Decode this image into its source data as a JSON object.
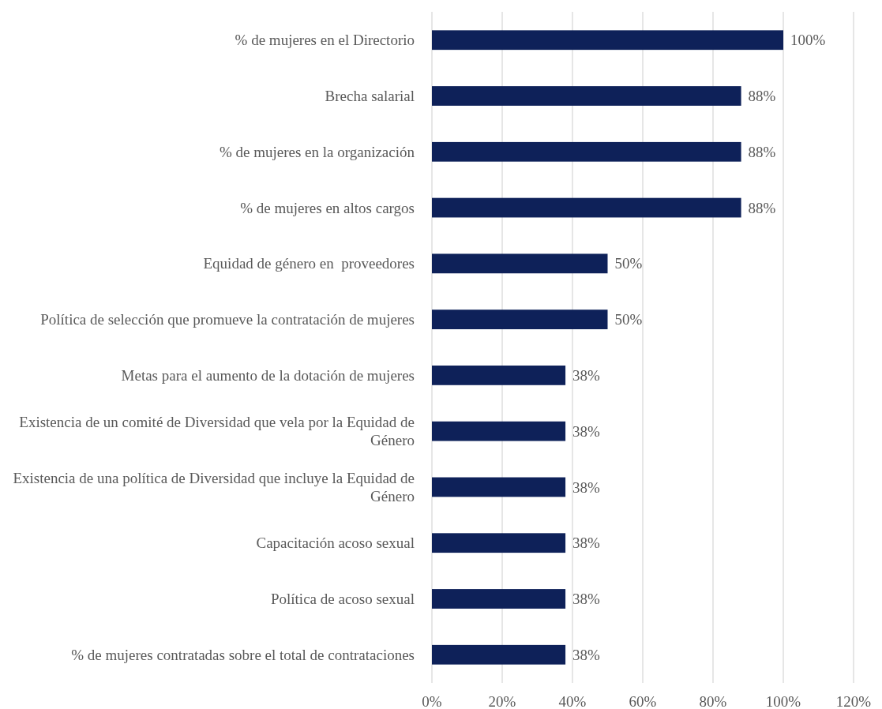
{
  "chart_data": {
    "type": "bar",
    "orientation": "horizontal",
    "categories": [
      "% de mujeres en el Directorio",
      "Brecha salarial",
      "% de mujeres en la organización",
      "% de mujeres en altos cargos",
      "Equidad de género en  proveedores",
      "Política de selección que promueve la contratación de mujeres",
      "Metas para el aumento de la dotación de mujeres",
      "Existencia de un comité de Diversidad que vela por la Equidad de Género",
      "Existencia de una política de Diversidad que incluye la Equidad de Género",
      "Capacitación acoso sexual",
      "Política de acoso sexual",
      "% de mujeres contratadas sobre el total de contrataciones"
    ],
    "values": [
      100,
      88,
      88,
      88,
      50,
      50,
      38,
      38,
      38,
      38,
      38,
      38
    ],
    "value_labels": [
      "100%",
      "88%",
      "88%",
      "88%",
      "50%",
      "50%",
      "38%",
      "38%",
      "38%",
      "38%",
      "38%",
      "38%"
    ],
    "color": "#0e2159",
    "xlim": [
      0,
      120
    ],
    "xticks": [
      {
        "value": 0,
        "label": "0%"
      },
      {
        "value": 20,
        "label": "20%"
      },
      {
        "value": 40,
        "label": "40%"
      },
      {
        "value": 60,
        "label": "60%"
      },
      {
        "value": 80,
        "label": "80%"
      },
      {
        "value": 100,
        "label": "100%"
      },
      {
        "value": 120,
        "label": "120%"
      }
    ],
    "grid": "x"
  }
}
